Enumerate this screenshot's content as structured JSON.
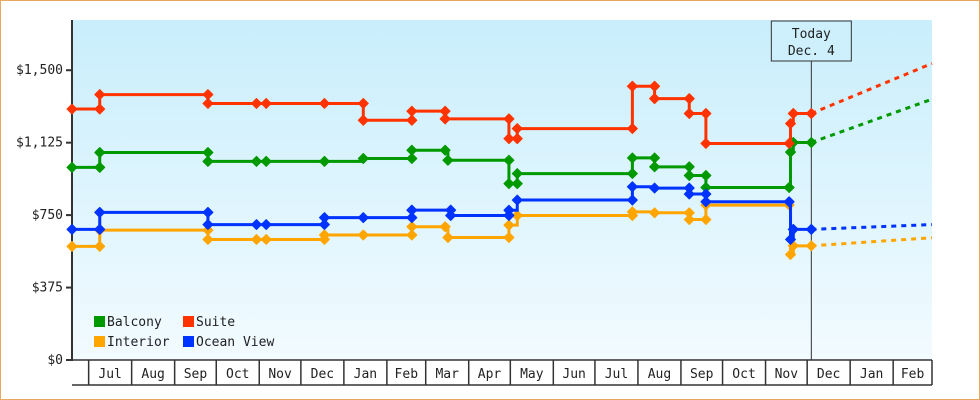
{
  "chart_data": {
    "type": "line",
    "step": true,
    "xlim": [
      "2013-06-19",
      "2015-03-01"
    ],
    "ylim": [
      0,
      1760
    ],
    "yticks": [
      0,
      375,
      750,
      1125,
      1500
    ],
    "ytick_labels": [
      "$0",
      "$375",
      "$750",
      "$1,125",
      "$1,500"
    ],
    "months": [
      {
        "label": "Jul",
        "start": "2013-07-01",
        "end": "2013-08-01"
      },
      {
        "label": "Aug",
        "start": "2013-08-01",
        "end": "2013-09-01"
      },
      {
        "label": "Sep",
        "start": "2013-09-01",
        "end": "2013-10-01"
      },
      {
        "label": "Oct",
        "start": "2013-10-01",
        "end": "2013-11-01"
      },
      {
        "label": "Nov",
        "start": "2013-11-01",
        "end": "2013-12-01"
      },
      {
        "label": "Dec",
        "start": "2013-12-01",
        "end": "2014-01-01"
      },
      {
        "label": "Jan",
        "start": "2014-01-01",
        "end": "2014-02-01"
      },
      {
        "label": "Feb",
        "start": "2014-02-01",
        "end": "2014-03-01"
      },
      {
        "label": "Mar",
        "start": "2014-03-01",
        "end": "2014-04-01"
      },
      {
        "label": "Apr",
        "start": "2014-04-01",
        "end": "2014-05-01"
      },
      {
        "label": "May",
        "start": "2014-05-01",
        "end": "2014-06-01"
      },
      {
        "label": "Jun",
        "start": "2014-06-01",
        "end": "2014-07-01"
      },
      {
        "label": "Jul",
        "start": "2014-07-01",
        "end": "2014-08-01"
      },
      {
        "label": "Aug",
        "start": "2014-08-01",
        "end": "2014-09-01"
      },
      {
        "label": "Sep",
        "start": "2014-09-01",
        "end": "2014-10-01"
      },
      {
        "label": "Oct",
        "start": "2014-10-01",
        "end": "2014-11-01"
      },
      {
        "label": "Nov",
        "start": "2014-11-01",
        "end": "2014-12-01"
      },
      {
        "label": "Dec",
        "start": "2014-12-01",
        "end": "2015-01-01"
      },
      {
        "label": "Jan",
        "start": "2015-01-01",
        "end": "2015-02-01"
      },
      {
        "label": "Feb",
        "start": "2015-02-01",
        "end": "2015-03-01"
      }
    ],
    "today": {
      "line1": "Today",
      "line2": "Dec. 4",
      "date": "2014-12-04"
    },
    "grid": false,
    "legend_position": "bottom-left",
    "series": [
      {
        "name": "Balcony",
        "color": "#009900",
        "points": [
          [
            "2013-06-19",
            997
          ],
          [
            "2013-07-09",
            997
          ],
          [
            "2013-07-09",
            1074
          ],
          [
            "2013-09-25",
            1074
          ],
          [
            "2013-09-25",
            1028
          ],
          [
            "2013-10-30",
            1028
          ],
          [
            "2013-11-06",
            1028
          ],
          [
            "2013-12-18",
            1028
          ],
          [
            "2014-01-15",
            1043
          ],
          [
            "2014-02-19",
            1043
          ],
          [
            "2014-02-19",
            1086
          ],
          [
            "2014-03-15",
            1086
          ],
          [
            "2014-03-17",
            1034
          ],
          [
            "2014-04-30",
            1034
          ],
          [
            "2014-04-30",
            913
          ],
          [
            "2014-05-06",
            913
          ],
          [
            "2014-05-06",
            965
          ],
          [
            "2014-07-28",
            965
          ],
          [
            "2014-07-28",
            1046
          ],
          [
            "2014-08-13",
            1046
          ],
          [
            "2014-08-13",
            1000
          ],
          [
            "2014-09-07",
            1000
          ],
          [
            "2014-09-07",
            955
          ],
          [
            "2014-09-19",
            955
          ],
          [
            "2014-09-19",
            893
          ],
          [
            "2014-11-18",
            893
          ],
          [
            "2014-11-19",
            1076
          ],
          [
            "2014-11-21",
            1126
          ],
          [
            "2014-12-04",
            1126
          ]
        ],
        "forecast": [
          [
            "2014-12-04",
            1126
          ],
          [
            "2015-03-01",
            1350
          ]
        ]
      },
      {
        "name": "Suite",
        "color": "#ff3300",
        "points": [
          [
            "2013-06-19",
            1299
          ],
          [
            "2013-07-09",
            1299
          ],
          [
            "2013-07-09",
            1374
          ],
          [
            "2013-09-25",
            1374
          ],
          [
            "2013-09-25",
            1328
          ],
          [
            "2013-10-30",
            1328
          ],
          [
            "2013-11-06",
            1328
          ],
          [
            "2013-12-18",
            1328
          ],
          [
            "2014-01-15",
            1328
          ],
          [
            "2014-01-15",
            1241
          ],
          [
            "2014-02-19",
            1241
          ],
          [
            "2014-02-19",
            1288
          ],
          [
            "2014-03-15",
            1288
          ],
          [
            "2014-03-15",
            1248
          ],
          [
            "2014-04-30",
            1248
          ],
          [
            "2014-04-30",
            1146
          ],
          [
            "2014-05-06",
            1146
          ],
          [
            "2014-05-06",
            1198
          ],
          [
            "2014-07-28",
            1198
          ],
          [
            "2014-07-28",
            1417
          ],
          [
            "2014-08-13",
            1417
          ],
          [
            "2014-08-13",
            1353
          ],
          [
            "2014-09-07",
            1353
          ],
          [
            "2014-09-07",
            1276
          ],
          [
            "2014-09-19",
            1276
          ],
          [
            "2014-09-19",
            1121
          ],
          [
            "2014-11-18",
            1121
          ],
          [
            "2014-11-19",
            1224
          ],
          [
            "2014-11-21",
            1276
          ],
          [
            "2014-12-04",
            1276
          ]
        ],
        "forecast": [
          [
            "2014-12-04",
            1276
          ],
          [
            "2015-03-01",
            1535
          ]
        ]
      },
      {
        "name": "Interior",
        "color": "#ffa500",
        "points": [
          [
            "2013-06-19",
            588
          ],
          [
            "2013-07-09",
            588
          ],
          [
            "2013-07-09",
            672
          ],
          [
            "2013-09-25",
            672
          ],
          [
            "2013-09-25",
            624
          ],
          [
            "2013-10-30",
            624
          ],
          [
            "2013-11-06",
            624
          ],
          [
            "2013-12-18",
            624
          ],
          [
            "2013-12-18",
            647
          ],
          [
            "2014-01-15",
            647
          ],
          [
            "2014-02-19",
            647
          ],
          [
            "2014-02-19",
            690
          ],
          [
            "2014-03-15",
            690
          ],
          [
            "2014-03-17",
            634
          ],
          [
            "2014-04-30",
            634
          ],
          [
            "2014-04-30",
            698
          ],
          [
            "2014-05-06",
            748
          ],
          [
            "2014-07-28",
            748
          ],
          [
            "2014-07-28",
            767
          ],
          [
            "2014-08-13",
            762
          ],
          [
            "2014-09-07",
            762
          ],
          [
            "2014-09-07",
            727
          ],
          [
            "2014-09-19",
            727
          ],
          [
            "2014-09-19",
            802
          ],
          [
            "2014-11-18",
            802
          ],
          [
            "2014-11-19",
            546
          ],
          [
            "2014-11-21",
            591
          ],
          [
            "2014-12-04",
            591
          ]
        ],
        "forecast": [
          [
            "2014-12-04",
            591
          ],
          [
            "2015-03-01",
            633
          ]
        ]
      },
      {
        "name": "Ocean View",
        "color": "#0033ff",
        "points": [
          [
            "2013-06-19",
            676
          ],
          [
            "2013-07-09",
            676
          ],
          [
            "2013-07-09",
            764
          ],
          [
            "2013-09-25",
            764
          ],
          [
            "2013-09-25",
            701
          ],
          [
            "2013-10-30",
            701
          ],
          [
            "2013-11-06",
            701
          ],
          [
            "2013-12-18",
            701
          ],
          [
            "2013-12-18",
            737
          ],
          [
            "2014-01-15",
            737
          ],
          [
            "2014-02-19",
            737
          ],
          [
            "2014-02-19",
            776
          ],
          [
            "2014-03-19",
            776
          ],
          [
            "2014-03-19",
            748
          ],
          [
            "2014-04-30",
            748
          ],
          [
            "2014-04-30",
            775
          ],
          [
            "2014-05-06",
            828
          ],
          [
            "2014-07-28",
            828
          ],
          [
            "2014-07-28",
            897
          ],
          [
            "2014-08-13",
            890
          ],
          [
            "2014-09-07",
            890
          ],
          [
            "2014-09-07",
            859
          ],
          [
            "2014-09-19",
            859
          ],
          [
            "2014-09-19",
            819
          ],
          [
            "2014-11-18",
            819
          ],
          [
            "2014-11-19",
            624
          ],
          [
            "2014-11-21",
            676
          ],
          [
            "2014-12-04",
            676
          ]
        ],
        "forecast": [
          [
            "2014-12-04",
            676
          ],
          [
            "2015-03-01",
            701
          ]
        ]
      }
    ]
  }
}
